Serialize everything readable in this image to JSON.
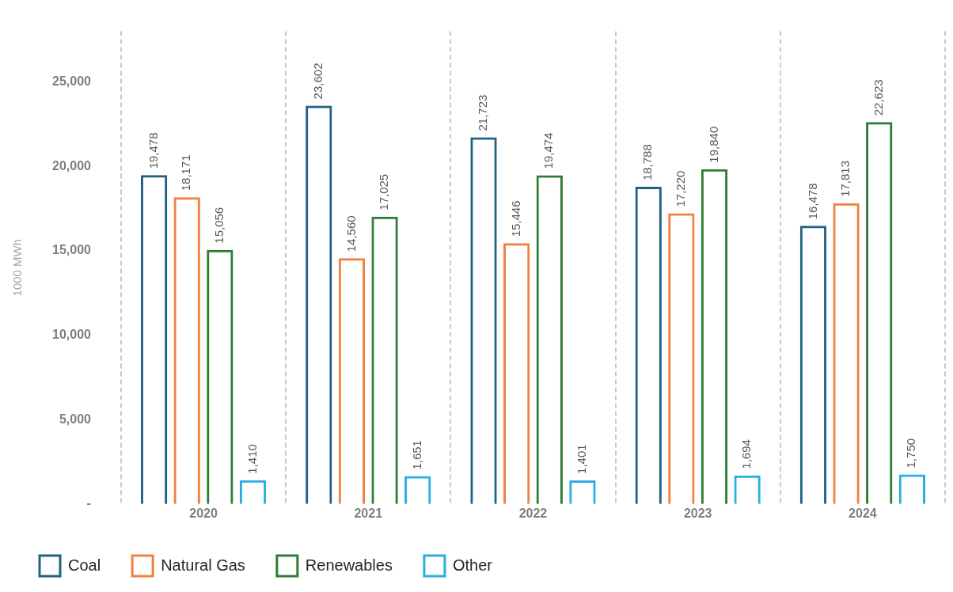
{
  "chart_data": {
    "type": "bar",
    "ylabel": "1000 MWh",
    "categories": [
      "2020",
      "2021",
      "2022",
      "2023",
      "2024"
    ],
    "series": [
      {
        "name": "Coal",
        "color": "#236184",
        "values": [
          19478,
          23602,
          21723,
          18788,
          16478
        ],
        "value_labels": [
          "19,478",
          "23,602",
          "21,723",
          "18,788",
          "16,478"
        ]
      },
      {
        "name": "Natural Gas",
        "color": "#f0813f",
        "values": [
          18171,
          14560,
          15446,
          17220,
          17813
        ],
        "value_labels": [
          "18,171",
          "14,560",
          "15,446",
          "17,220",
          "17,813"
        ]
      },
      {
        "name": "Renewables",
        "color": "#2f7d34",
        "values": [
          15056,
          17025,
          19474,
          19840,
          22623
        ],
        "value_labels": [
          "15,056",
          "17,025",
          "19,474",
          "19,840",
          "22,623"
        ]
      },
      {
        "name": "Other",
        "color": "#2aaee2",
        "values": [
          1410,
          1651,
          1401,
          1694,
          1750
        ],
        "value_labels": [
          "1,410",
          "1,651",
          "1,401",
          "1,694",
          "1,750"
        ]
      }
    ],
    "ylim": [
      0,
      28000
    ],
    "yticks": [
      {
        "value": 0,
        "label": "-"
      },
      {
        "value": 5000,
        "label": "5,000"
      },
      {
        "value": 10000,
        "label": "10,000"
      },
      {
        "value": 15000,
        "label": "15,000"
      },
      {
        "value": 20000,
        "label": "20,000"
      },
      {
        "value": 25000,
        "label": "25,000"
      }
    ],
    "grid": "x",
    "legend": "bottom left"
  }
}
